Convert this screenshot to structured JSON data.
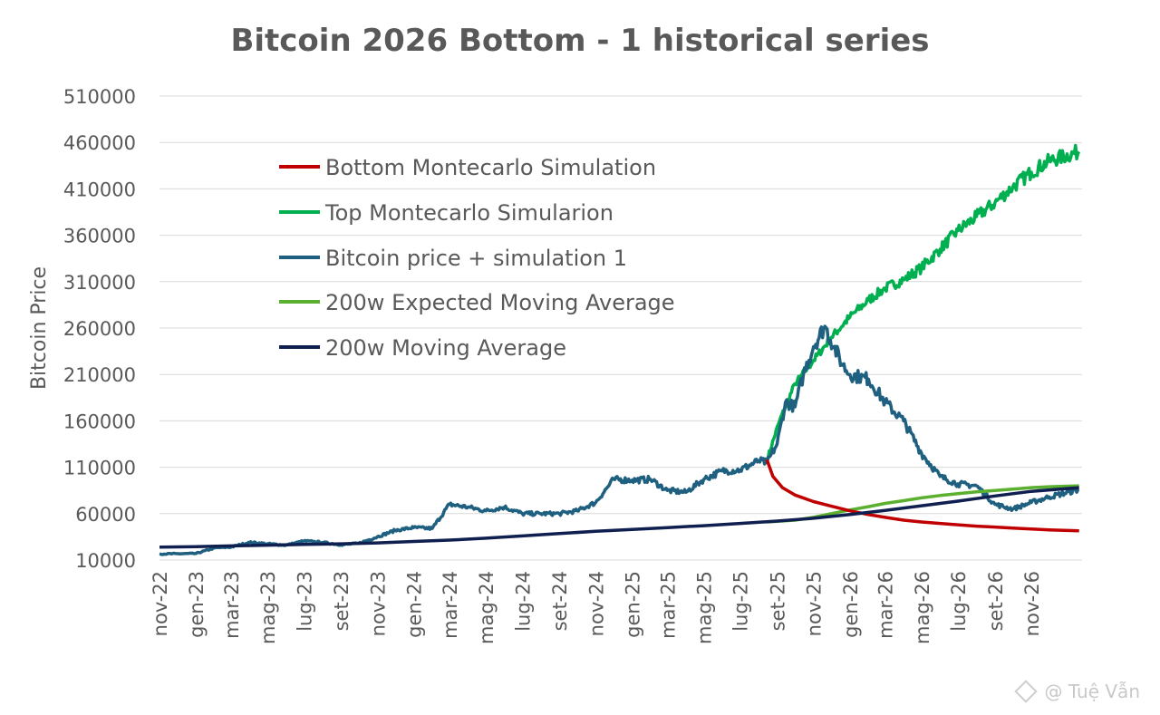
{
  "colors": {
    "bottom": "#c00000",
    "top": "#00b050",
    "btc": "#1f5f7f",
    "expected": "#5bb030",
    "ma": "#0f1f4f",
    "text": "#595959",
    "grid": "#d9d9d9"
  },
  "watermark": "@ Tuệ Vẫn",
  "chart_data": {
    "type": "line",
    "title": "Bitcoin 2026 Bottom - 1 historical series",
    "ylabel": "Bitcoin Price",
    "xlabel": "",
    "ylim": [
      10000,
      510000
    ],
    "yticks": [
      10000,
      60000,
      110000,
      160000,
      210000,
      260000,
      310000,
      360000,
      410000,
      460000,
      510000
    ],
    "xlim": [
      "2022-11-01",
      "2027-01-25"
    ],
    "xticks": [
      "nov-22",
      "gen-23",
      "mar-23",
      "mag-23",
      "lug-23",
      "set-23",
      "nov-23",
      "gen-24",
      "mar-24",
      "mag-24",
      "lug-24",
      "set-24",
      "nov-24",
      "gen-25",
      "mar-25",
      "mag-25",
      "lug-25",
      "set-25",
      "nov-25",
      "gen-26",
      "mar-26",
      "mag-26",
      "lug-26",
      "set-26",
      "nov-26"
    ],
    "grid": true,
    "legend_position": "upper-left",
    "series": [
      {
        "name": "Bottom Montecarlo Simulation",
        "color_key": "bottom",
        "points": [
          [
            "2025-08-15",
            118000
          ],
          [
            "2025-08-25",
            100000
          ],
          [
            "2025-09-10",
            88000
          ],
          [
            "2025-10-01",
            80000
          ],
          [
            "2025-11-01",
            73000
          ],
          [
            "2025-12-01",
            68000
          ],
          [
            "2026-01-01",
            63000
          ],
          [
            "2026-02-01",
            59000
          ],
          [
            "2026-03-01",
            56000
          ],
          [
            "2026-04-01",
            53000
          ],
          [
            "2026-05-01",
            51000
          ],
          [
            "2026-06-01",
            49500
          ],
          [
            "2026-07-01",
            48000
          ],
          [
            "2026-08-01",
            46500
          ],
          [
            "2026-09-01",
            45500
          ],
          [
            "2026-10-01",
            44500
          ],
          [
            "2026-11-01",
            43500
          ],
          [
            "2026-12-01",
            42500
          ],
          [
            "2027-01-20",
            41500
          ]
        ]
      },
      {
        "name": "Top Montecarlo Simularion",
        "color_key": "top",
        "points": [
          [
            "2025-08-15",
            118000
          ],
          [
            "2025-09-05",
            160000
          ],
          [
            "2025-10-01",
            200000
          ],
          [
            "2025-11-01",
            225000
          ],
          [
            "2025-12-01",
            250000
          ],
          [
            "2026-01-01",
            272000
          ],
          [
            "2026-02-01",
            290000
          ],
          [
            "2026-03-01",
            303000
          ],
          [
            "2026-04-01",
            312000
          ],
          [
            "2026-05-01",
            325000
          ],
          [
            "2026-06-01",
            345000
          ],
          [
            "2026-07-01",
            365000
          ],
          [
            "2026-08-01",
            380000
          ],
          [
            "2026-09-01",
            395000
          ],
          [
            "2026-10-01",
            412000
          ],
          [
            "2026-11-01",
            428000
          ],
          [
            "2026-12-01",
            440000
          ],
          [
            "2027-01-20",
            450000
          ]
        ]
      },
      {
        "name": "Bitcoin price + simulation 1",
        "color_key": "btc",
        "points": [
          [
            "2022-11-01",
            16500
          ],
          [
            "2022-12-01",
            16800
          ],
          [
            "2023-01-01",
            17000
          ],
          [
            "2023-02-01",
            23000
          ],
          [
            "2023-03-01",
            24000
          ],
          [
            "2023-04-01",
            29000
          ],
          [
            "2023-05-01",
            27500
          ],
          [
            "2023-06-01",
            26000
          ],
          [
            "2023-07-01",
            30500
          ],
          [
            "2023-08-01",
            29000
          ],
          [
            "2023-09-01",
            26500
          ],
          [
            "2023-10-01",
            28000
          ],
          [
            "2023-11-01",
            35000
          ],
          [
            "2023-12-01",
            42000
          ],
          [
            "2024-01-01",
            45000
          ],
          [
            "2024-02-01",
            44000
          ],
          [
            "2024-03-01",
            70000
          ],
          [
            "2024-04-01",
            67000
          ],
          [
            "2024-05-01",
            63000
          ],
          [
            "2024-06-01",
            67000
          ],
          [
            "2024-07-01",
            60000
          ],
          [
            "2024-08-01",
            60000
          ],
          [
            "2024-09-01",
            60000
          ],
          [
            "2024-10-01",
            63000
          ],
          [
            "2024-11-01",
            72000
          ],
          [
            "2024-12-01",
            97000
          ],
          [
            "2025-01-01",
            96000
          ],
          [
            "2025-02-01",
            97000
          ],
          [
            "2025-03-01",
            85000
          ],
          [
            "2025-04-01",
            83000
          ],
          [
            "2025-05-01",
            97000
          ],
          [
            "2025-06-01",
            106000
          ],
          [
            "2025-07-01",
            107000
          ],
          [
            "2025-08-01",
            117000
          ],
          [
            "2025-08-15",
            115000
          ],
          [
            "2025-09-01",
            135000
          ],
          [
            "2025-09-15",
            180000
          ],
          [
            "2025-10-01",
            175000
          ],
          [
            "2025-10-15",
            210000
          ],
          [
            "2025-11-01",
            240000
          ],
          [
            "2025-11-20",
            262000
          ],
          [
            "2025-12-05",
            240000
          ],
          [
            "2025-12-20",
            220000
          ],
          [
            "2026-01-01",
            210000
          ],
          [
            "2026-02-01",
            205000
          ],
          [
            "2026-03-01",
            180000
          ],
          [
            "2026-04-01",
            160000
          ],
          [
            "2026-05-01",
            125000
          ],
          [
            "2026-06-01",
            100000
          ],
          [
            "2026-07-01",
            92000
          ],
          [
            "2026-08-01",
            90000
          ],
          [
            "2026-09-01",
            70000
          ],
          [
            "2026-10-01",
            65000
          ],
          [
            "2026-11-01",
            72000
          ],
          [
            "2026-12-01",
            78000
          ],
          [
            "2027-01-20",
            86000
          ]
        ]
      },
      {
        "name": "200w Expected Moving Average",
        "color_key": "expected",
        "points": [
          [
            "2025-08-15",
            51000
          ],
          [
            "2025-10-01",
            53000
          ],
          [
            "2025-11-01",
            56000
          ],
          [
            "2025-12-01",
            60000
          ],
          [
            "2026-01-01",
            64000
          ],
          [
            "2026-02-01",
            67500
          ],
          [
            "2026-03-01",
            71000
          ],
          [
            "2026-04-01",
            74000
          ],
          [
            "2026-05-01",
            77000
          ],
          [
            "2026-06-01",
            79500
          ],
          [
            "2026-07-01",
            81500
          ],
          [
            "2026-08-01",
            83500
          ],
          [
            "2026-09-01",
            85000
          ],
          [
            "2026-10-01",
            86500
          ],
          [
            "2026-11-01",
            88000
          ],
          [
            "2026-12-01",
            89000
          ],
          [
            "2027-01-20",
            90000
          ]
        ]
      },
      {
        "name": "200w Moving Average",
        "color_key": "ma",
        "points": [
          [
            "2022-11-01",
            24000
          ],
          [
            "2023-01-01",
            24500
          ],
          [
            "2023-03-01",
            25200
          ],
          [
            "2023-05-01",
            26000
          ],
          [
            "2023-07-01",
            26800
          ],
          [
            "2023-09-01",
            27500
          ],
          [
            "2023-11-01",
            28500
          ],
          [
            "2024-01-01",
            30000
          ],
          [
            "2024-03-01",
            31500
          ],
          [
            "2024-05-01",
            33500
          ],
          [
            "2024-07-01",
            36000
          ],
          [
            "2024-09-01",
            38500
          ],
          [
            "2024-11-01",
            41000
          ],
          [
            "2025-01-01",
            43000
          ],
          [
            "2025-03-01",
            45000
          ],
          [
            "2025-05-01",
            47000
          ],
          [
            "2025-07-01",
            49500
          ],
          [
            "2025-09-01",
            52000
          ],
          [
            "2025-11-01",
            55000
          ],
          [
            "2026-01-01",
            59000
          ],
          [
            "2026-03-01",
            63500
          ],
          [
            "2026-05-01",
            68500
          ],
          [
            "2026-07-01",
            73500
          ],
          [
            "2026-09-01",
            79000
          ],
          [
            "2026-11-01",
            84000
          ],
          [
            "2027-01-20",
            88000
          ]
        ]
      }
    ]
  }
}
